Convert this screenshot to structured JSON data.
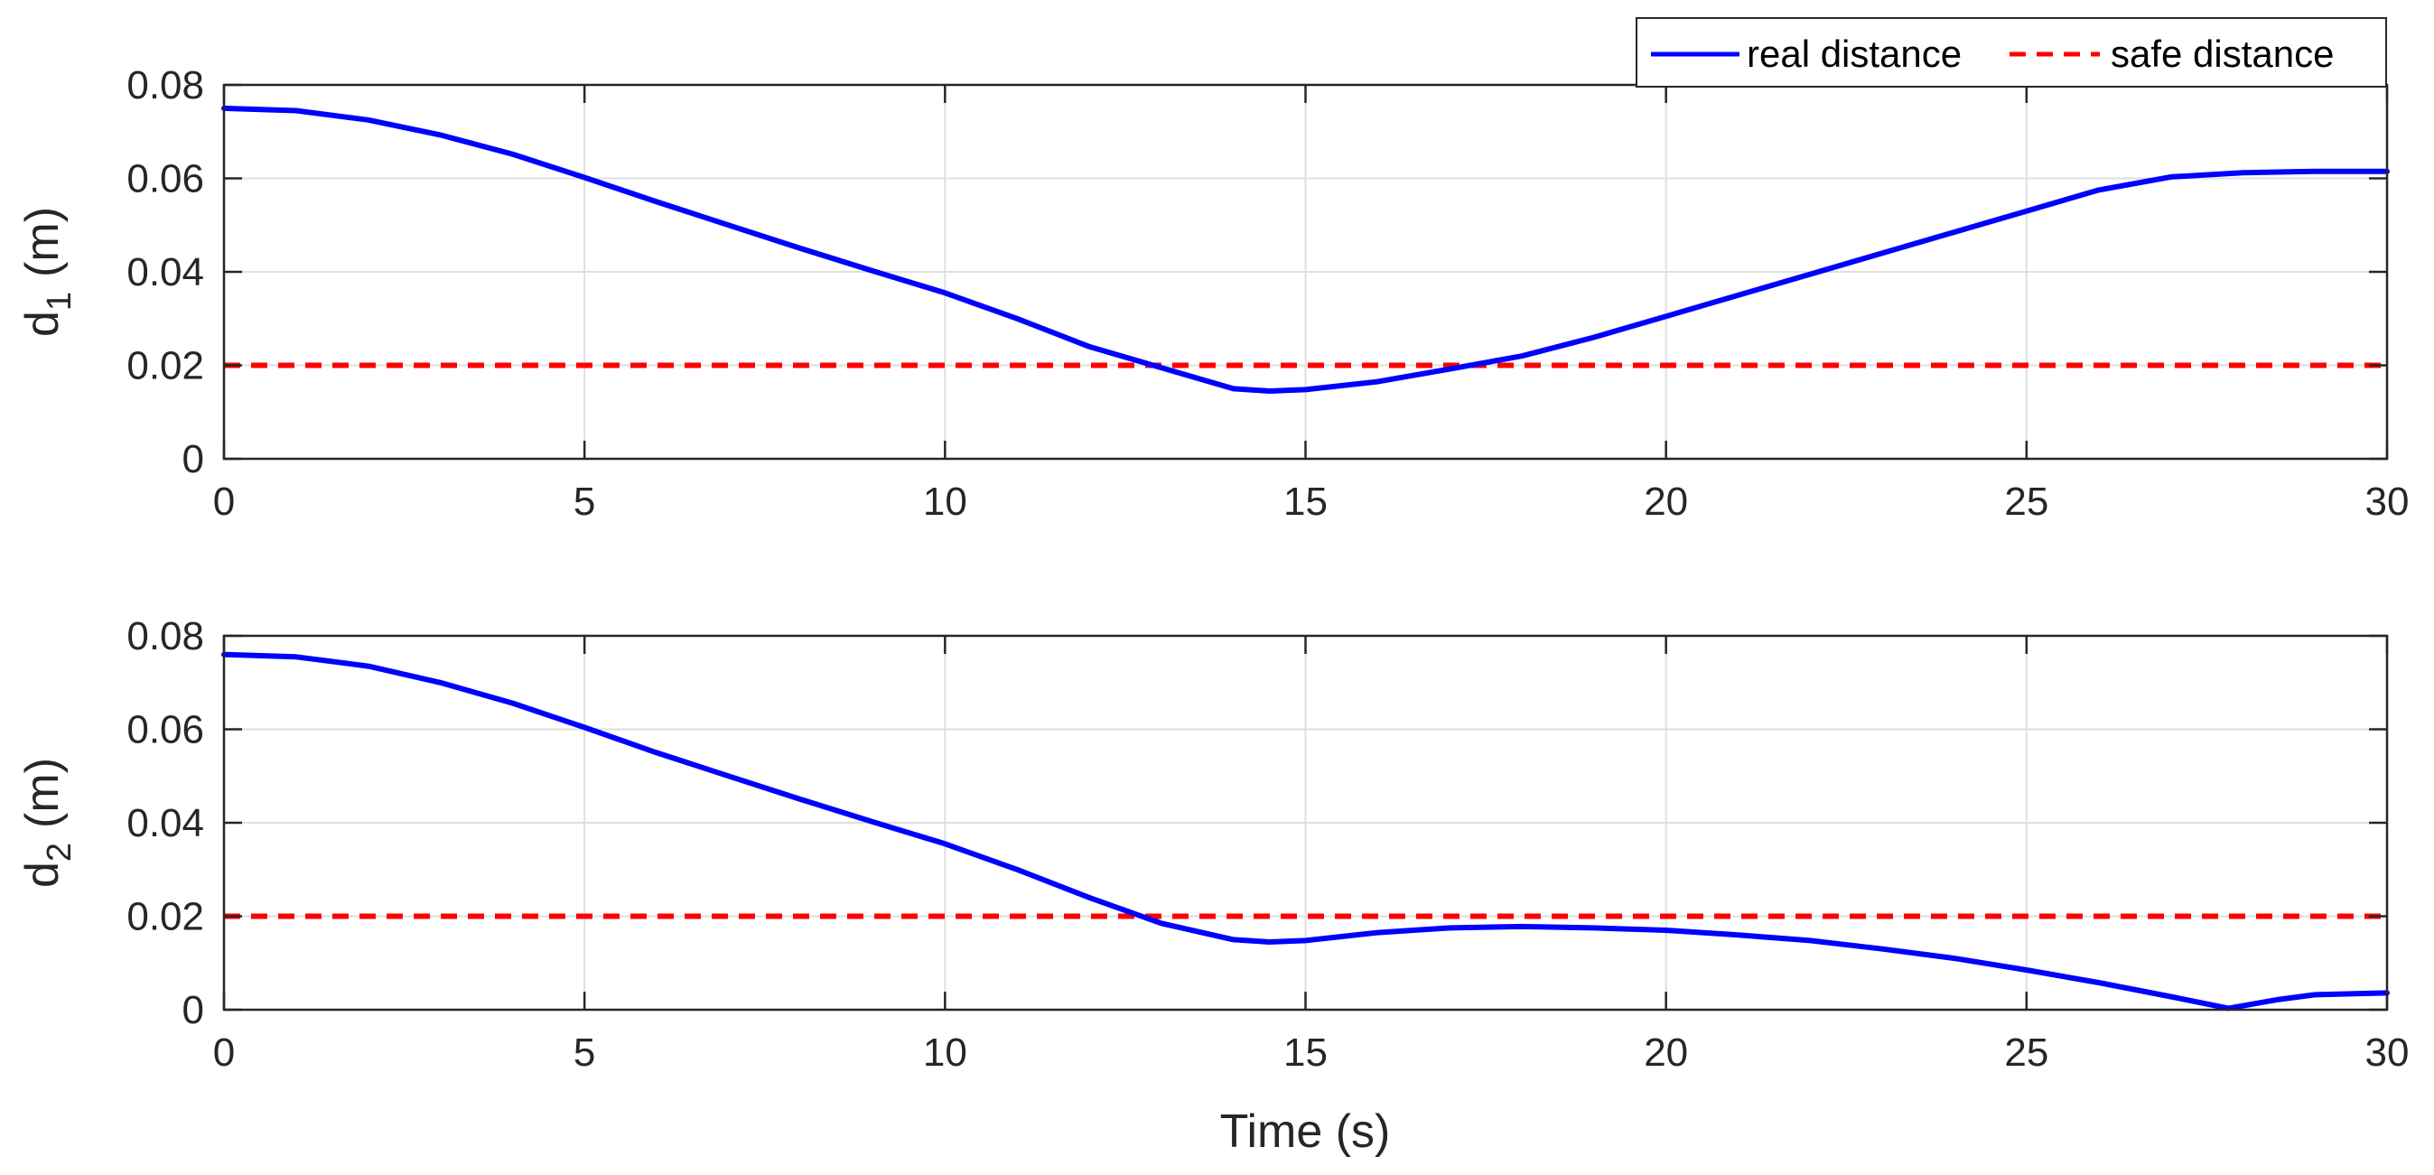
{
  "chart_data": [
    {
      "type": "line",
      "ylabel_main": "d",
      "ylabel_sub": "1",
      "ylabel_unit": "(m)",
      "xlim": [
        0,
        30
      ],
      "ylim": [
        0,
        0.08
      ],
      "xticks": [
        "0",
        "5",
        "10",
        "15",
        "20",
        "25",
        "30"
      ],
      "yticks": [
        "0",
        "0.02",
        "0.04",
        "0.06",
        "0.08"
      ],
      "grid": true,
      "legend_position": "top-right",
      "series": [
        {
          "name": "real distance",
          "color": "#0000ff",
          "style": "solid",
          "x": [
            0,
            1,
            2,
            3,
            4,
            5,
            6,
            7,
            8,
            9,
            10,
            11,
            12,
            13,
            14,
            14.5,
            15,
            16,
            17,
            18,
            19,
            20,
            21,
            22,
            23,
            24,
            25,
            26,
            27,
            28,
            29,
            30
          ],
          "y": [
            0.075,
            0.0745,
            0.0725,
            0.0693,
            0.0652,
            0.0602,
            0.055,
            0.05,
            0.045,
            0.0402,
            0.0355,
            0.03,
            0.024,
            0.0195,
            0.015,
            0.0145,
            0.0148,
            0.0165,
            0.0192,
            0.022,
            0.026,
            0.0305,
            0.035,
            0.0395,
            0.044,
            0.0485,
            0.053,
            0.0575,
            0.0603,
            0.0612,
            0.0615,
            0.0615
          ]
        },
        {
          "name": "safe distance",
          "color": "#ff0000",
          "style": "dashed",
          "x": [
            0,
            30
          ],
          "y": [
            0.02,
            0.02
          ]
        }
      ]
    },
    {
      "type": "line",
      "ylabel_main": "d",
      "ylabel_sub": "2",
      "ylabel_unit": "(m)",
      "xlabel": "Time (s)",
      "xlim": [
        0,
        30
      ],
      "ylim": [
        0,
        0.08
      ],
      "xticks": [
        "0",
        "5",
        "10",
        "15",
        "20",
        "25",
        "30"
      ],
      "yticks": [
        "0",
        "0.02",
        "0.04",
        "0.06",
        "0.08"
      ],
      "grid": true,
      "series": [
        {
          "name": "real distance",
          "color": "#0000ff",
          "style": "solid",
          "x": [
            0,
            1,
            2,
            3,
            4,
            5,
            6,
            7,
            8,
            9,
            10,
            11,
            12,
            13,
            14,
            14.5,
            15,
            16,
            17,
            18,
            19,
            20,
            21,
            22,
            23,
            24,
            25,
            26,
            27,
            27.8,
            28.5,
            29,
            30
          ],
          "y": [
            0.076,
            0.0755,
            0.0735,
            0.07,
            0.0656,
            0.0604,
            0.055,
            0.05,
            0.045,
            0.0402,
            0.0355,
            0.03,
            0.024,
            0.0185,
            0.015,
            0.0145,
            0.0148,
            0.0165,
            0.0175,
            0.0178,
            0.0175,
            0.017,
            0.016,
            0.0148,
            0.013,
            0.011,
            0.0085,
            0.0058,
            0.0028,
            0.0003,
            0.0022,
            0.0032,
            0.0036
          ]
        },
        {
          "name": "safe distance",
          "color": "#ff0000",
          "style": "dashed",
          "x": [
            0,
            30
          ],
          "y": [
            0.02,
            0.02
          ]
        }
      ]
    }
  ]
}
